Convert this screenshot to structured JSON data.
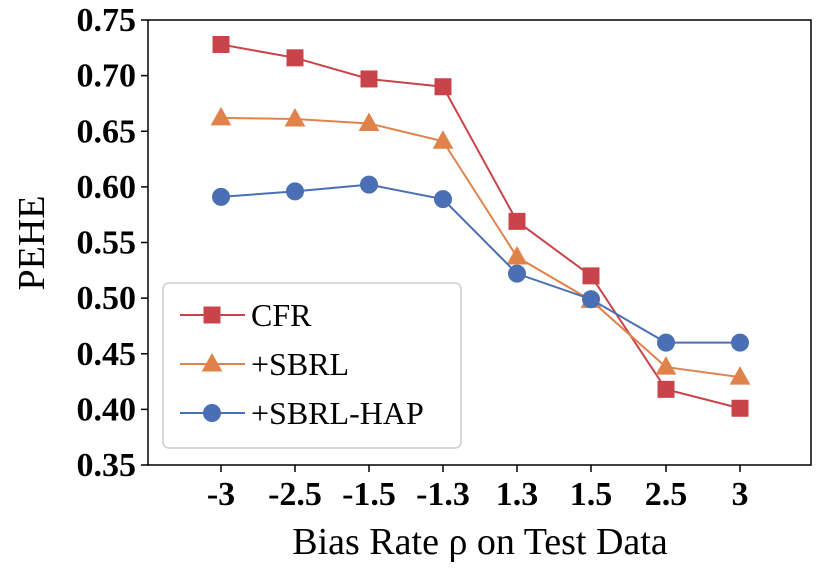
{
  "chart_data": {
    "type": "line",
    "title": "",
    "xlabel": "Bias Rate ρ on Test Data",
    "ylabel": "PEHE",
    "categories": [
      "-3",
      "-2.5",
      "-1.5",
      "-1.3",
      "1.3",
      "1.5",
      "2.5",
      "3"
    ],
    "ylim": [
      0.35,
      0.75
    ],
    "yticks": [
      "0.35",
      "0.40",
      "0.45",
      "0.50",
      "0.55",
      "0.60",
      "0.65",
      "0.70",
      "0.75"
    ],
    "legend_position": "bottom-left",
    "series": [
      {
        "name": "CFR",
        "marker": "square",
        "color": "#c9444a",
        "values": [
          0.728,
          0.716,
          0.697,
          0.69,
          0.569,
          0.52,
          0.418,
          0.401
        ]
      },
      {
        "name": "+SBRL",
        "marker": "triangle",
        "color": "#e0834b",
        "values": [
          0.662,
          0.661,
          0.657,
          0.641,
          0.537,
          0.498,
          0.438,
          0.429
        ]
      },
      {
        "name": "+SBRL-HAP",
        "marker": "circle",
        "color": "#4a6fb5",
        "values": [
          0.591,
          0.596,
          0.602,
          0.589,
          0.522,
          0.499,
          0.46,
          0.46
        ]
      }
    ]
  }
}
